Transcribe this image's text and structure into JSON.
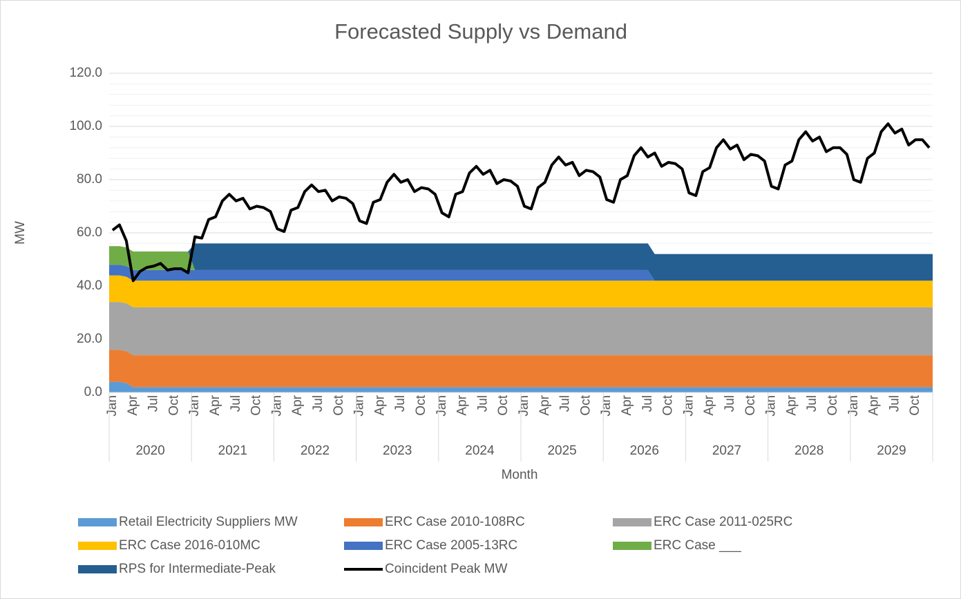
{
  "chart_data": {
    "type": "stacked_area_line",
    "title": "Forecasted Supply vs Demand",
    "y_label": "MW",
    "x_label": "Month",
    "categories": [
      "Jan",
      null,
      null,
      "Apr",
      null,
      null,
      "Jul",
      null,
      null,
      "Oct",
      null,
      null,
      "Jan",
      null,
      null,
      "Apr",
      null,
      null,
      "Jul",
      null,
      null,
      "Oct",
      null,
      null,
      "Jan",
      null,
      null,
      "Apr",
      null,
      null,
      "Jul",
      null,
      null,
      "Oct",
      null,
      null,
      "Jan",
      null,
      null,
      "Apr",
      null,
      null,
      "Jul",
      null,
      null,
      "Oct",
      null,
      null,
      "Jan",
      null,
      null,
      "Apr",
      null,
      null,
      "Jul",
      null,
      null,
      "Oct",
      null,
      null,
      "Jan",
      null,
      null,
      "Apr",
      null,
      null,
      "Jul",
      null,
      null,
      "Oct",
      null,
      null,
      "Jan",
      null,
      null,
      "Apr",
      null,
      null,
      "Jul",
      null,
      null,
      "Oct",
      null,
      null,
      "Jan",
      null,
      null,
      "Apr",
      null,
      null,
      "Jul",
      null,
      null,
      "Oct",
      null,
      null,
      "Jan",
      null,
      null,
      "Apr",
      null,
      null,
      "Jul",
      null,
      null,
      "Oct",
      null,
      null,
      "Jan",
      null,
      null,
      "Apr",
      null,
      null,
      "Jul",
      null,
      null,
      "Oct",
      null,
      null
    ],
    "x_groups": [
      "2020",
      "2021",
      "2022",
      "2023",
      "2024",
      "2025",
      "2026",
      "2027",
      "2028",
      "2029"
    ],
    "ylim": [
      0,
      120
    ],
    "yticks": [
      {
        "value": 0,
        "label": "0.0"
      },
      {
        "value": 20,
        "label": "20.0"
      },
      {
        "value": 40,
        "label": "40.0"
      },
      {
        "value": 60,
        "label": "60.0"
      },
      {
        "value": 80,
        "label": "80.0"
      },
      {
        "value": 100,
        "label": "100.0"
      },
      {
        "value": 120,
        "label": "120.0"
      }
    ],
    "grid": true,
    "minor_grid_step": 4,
    "legend": "bottom",
    "series": [
      {
        "name": "Retail Electricity Suppliers MW",
        "color": "#5b9bd5",
        "kind": "area",
        "values": [
          4,
          4,
          3.5,
          2,
          2,
          2,
          2,
          2,
          2,
          2,
          2,
          2,
          2,
          2,
          2,
          2,
          2,
          2,
          2,
          2,
          2,
          2,
          2,
          2,
          2,
          2,
          2,
          2,
          2,
          2,
          2,
          2,
          2,
          2,
          2,
          2,
          2,
          2,
          2,
          2,
          2,
          2,
          2,
          2,
          2,
          2,
          2,
          2,
          2,
          2,
          2,
          2,
          2,
          2,
          2,
          2,
          2,
          2,
          2,
          2,
          2,
          2,
          2,
          2,
          2,
          2,
          2,
          2,
          2,
          2,
          2,
          2,
          2,
          2,
          2,
          2,
          2,
          2,
          2,
          2,
          2,
          2,
          2,
          2,
          2,
          2,
          2,
          2,
          2,
          2,
          2,
          2,
          2,
          2,
          2,
          2,
          2,
          2,
          2,
          2,
          2,
          2,
          2,
          2,
          2,
          2,
          2,
          2,
          2,
          2,
          2,
          2,
          2,
          2,
          2,
          2,
          2,
          2,
          2,
          2
        ]
      },
      {
        "name": "ERC Case 2010-108RC",
        "color": "#ed7d31",
        "kind": "area",
        "values": [
          12,
          12,
          12,
          12,
          12,
          12,
          12,
          12,
          12,
          12,
          12,
          12,
          12,
          12,
          12,
          12,
          12,
          12,
          12,
          12,
          12,
          12,
          12,
          12,
          12,
          12,
          12,
          12,
          12,
          12,
          12,
          12,
          12,
          12,
          12,
          12,
          12,
          12,
          12,
          12,
          12,
          12,
          12,
          12,
          12,
          12,
          12,
          12,
          12,
          12,
          12,
          12,
          12,
          12,
          12,
          12,
          12,
          12,
          12,
          12,
          12,
          12,
          12,
          12,
          12,
          12,
          12,
          12,
          12,
          12,
          12,
          12,
          12,
          12,
          12,
          12,
          12,
          12,
          12,
          12,
          12,
          12,
          12,
          12,
          12,
          12,
          12,
          12,
          12,
          12,
          12,
          12,
          12,
          12,
          12,
          12,
          12,
          12,
          12,
          12,
          12,
          12,
          12,
          12,
          12,
          12,
          12,
          12,
          12,
          12,
          12,
          12,
          12,
          12,
          12,
          12,
          12,
          12,
          12,
          12
        ]
      },
      {
        "name": "ERC Case 2011-025RC",
        "color": "#a5a5a5",
        "kind": "area",
        "values": [
          18,
          18,
          18,
          18,
          18,
          18,
          18,
          18,
          18,
          18,
          18,
          18,
          18,
          18,
          18,
          18,
          18,
          18,
          18,
          18,
          18,
          18,
          18,
          18,
          18,
          18,
          18,
          18,
          18,
          18,
          18,
          18,
          18,
          18,
          18,
          18,
          18,
          18,
          18,
          18,
          18,
          18,
          18,
          18,
          18,
          18,
          18,
          18,
          18,
          18,
          18,
          18,
          18,
          18,
          18,
          18,
          18,
          18,
          18,
          18,
          18,
          18,
          18,
          18,
          18,
          18,
          18,
          18,
          18,
          18,
          18,
          18,
          18,
          18,
          18,
          18,
          18,
          18,
          18,
          18,
          18,
          18,
          18,
          18,
          18,
          18,
          18,
          18,
          18,
          18,
          18,
          18,
          18,
          18,
          18,
          18,
          18,
          18,
          18,
          18,
          18,
          18,
          18,
          18,
          18,
          18,
          18,
          18,
          18,
          18,
          18,
          18,
          18,
          18,
          18,
          18,
          18,
          18,
          18,
          18
        ]
      },
      {
        "name": "ERC Case 2016-010MC",
        "color": "#ffc000",
        "kind": "area",
        "values": [
          10,
          10,
          10,
          10,
          10,
          10,
          10,
          10,
          10,
          10,
          10,
          10,
          10,
          10,
          10,
          10,
          10,
          10,
          10,
          10,
          10,
          10,
          10,
          10,
          10,
          10,
          10,
          10,
          10,
          10,
          10,
          10,
          10,
          10,
          10,
          10,
          10,
          10,
          10,
          10,
          10,
          10,
          10,
          10,
          10,
          10,
          10,
          10,
          10,
          10,
          10,
          10,
          10,
          10,
          10,
          10,
          10,
          10,
          10,
          10,
          10,
          10,
          10,
          10,
          10,
          10,
          10,
          10,
          10,
          10,
          10,
          10,
          10,
          10,
          10,
          10,
          10,
          10,
          10,
          10,
          10,
          10,
          10,
          10,
          10,
          10,
          10,
          10,
          10,
          10,
          10,
          10,
          10,
          10,
          10,
          10,
          10,
          10,
          10,
          10,
          10,
          10,
          10,
          10,
          10,
          10,
          10,
          10,
          10,
          10,
          10,
          10,
          10,
          10,
          10,
          10,
          10,
          10,
          10,
          10
        ]
      },
      {
        "name": "ERC Case 2005-13RC",
        "color": "#4472c4",
        "kind": "area",
        "values": [
          4,
          4,
          4,
          4,
          4,
          4,
          4,
          4,
          4,
          4,
          4,
          4,
          4,
          4,
          4,
          4,
          4,
          4,
          4,
          4,
          4,
          4,
          4,
          4,
          4,
          4,
          4,
          4,
          4,
          4,
          4,
          4,
          4,
          4,
          4,
          4,
          4,
          4,
          4,
          4,
          4,
          4,
          4,
          4,
          4,
          4,
          4,
          4,
          4,
          4,
          4,
          4,
          4,
          4,
          4,
          4,
          4,
          4,
          4,
          4,
          4,
          4,
          4,
          4,
          4,
          4,
          4,
          4,
          4,
          4,
          4,
          4,
          4,
          4,
          4,
          4,
          4,
          4,
          4,
          0,
          0,
          0,
          0,
          0,
          0,
          0,
          0,
          0,
          0,
          0,
          0,
          0,
          0,
          0,
          0,
          0,
          0,
          0,
          0,
          0,
          0,
          0,
          0,
          0,
          0,
          0,
          0,
          0,
          0,
          0,
          0,
          0,
          0,
          0,
          0,
          0,
          0,
          0,
          0,
          0
        ]
      },
      {
        "name": "ERC Case ___",
        "color": "#70ad47",
        "kind": "area",
        "values": [
          7,
          7,
          7,
          7,
          7,
          7,
          7,
          7,
          7,
          7,
          7,
          7,
          0,
          0,
          0,
          0,
          0,
          0,
          0,
          0,
          0,
          0,
          0,
          0,
          0,
          0,
          0,
          0,
          0,
          0,
          0,
          0,
          0,
          0,
          0,
          0,
          0,
          0,
          0,
          0,
          0,
          0,
          0,
          0,
          0,
          0,
          0,
          0,
          0,
          0,
          0,
          0,
          0,
          0,
          0,
          0,
          0,
          0,
          0,
          0,
          0,
          0,
          0,
          0,
          0,
          0,
          0,
          0,
          0,
          0,
          0,
          0,
          0,
          0,
          0,
          0,
          0,
          0,
          0,
          0,
          0,
          0,
          0,
          0,
          0,
          0,
          0,
          0,
          0,
          0,
          0,
          0,
          0,
          0,
          0,
          0,
          0,
          0,
          0,
          0,
          0,
          0,
          0,
          0,
          0,
          0,
          0,
          0,
          0,
          0,
          0,
          0,
          0,
          0,
          0,
          0,
          0,
          0,
          0,
          0
        ]
      },
      {
        "name": "RPS for Intermediate-Peak",
        "color": "#255e91",
        "kind": "area",
        "values": [
          0,
          0,
          0,
          0,
          0,
          0,
          0,
          0,
          0,
          0,
          0,
          0,
          10,
          10,
          10,
          10,
          10,
          10,
          10,
          10,
          10,
          10,
          10,
          10,
          10,
          10,
          10,
          10,
          10,
          10,
          10,
          10,
          10,
          10,
          10,
          10,
          10,
          10,
          10,
          10,
          10,
          10,
          10,
          10,
          10,
          10,
          10,
          10,
          10,
          10,
          10,
          10,
          10,
          10,
          10,
          10,
          10,
          10,
          10,
          10,
          10,
          10,
          10,
          10,
          10,
          10,
          10,
          10,
          10,
          10,
          10,
          10,
          10,
          10,
          10,
          10,
          10,
          10,
          10,
          10,
          10,
          10,
          10,
          10,
          10,
          10,
          10,
          10,
          10,
          10,
          10,
          10,
          10,
          10,
          10,
          10,
          10,
          10,
          10,
          10,
          10,
          10,
          10,
          10,
          10,
          10,
          10,
          10,
          10,
          10,
          10,
          10,
          10,
          10,
          10,
          10,
          10,
          10,
          10,
          10
        ]
      },
      {
        "name": "Coincident Peak MW",
        "color": "#000000",
        "kind": "line",
        "values": [
          61,
          63,
          57,
          42,
          45.5,
          47,
          47.5,
          48.5,
          46,
          46.5,
          46.5,
          45,
          58.5,
          58,
          65,
          66,
          72,
          74.5,
          72,
          73,
          69,
          70,
          69.5,
          68,
          61.5,
          60.5,
          68.5,
          69.5,
          75.5,
          78,
          75.5,
          76,
          72,
          73.5,
          73,
          71,
          64.5,
          63.5,
          71.5,
          72.5,
          79,
          82,
          79,
          80,
          75.5,
          77,
          76.5,
          74.5,
          67.5,
          66,
          74.5,
          75.5,
          82.5,
          85,
          82,
          83.5,
          78.5,
          80,
          79.5,
          77.5,
          70,
          69,
          77,
          79,
          85.5,
          88.5,
          85.5,
          86.5,
          81.5,
          83.5,
          83,
          81,
          72.5,
          71.5,
          80,
          81.5,
          89,
          92,
          88.5,
          90,
          85,
          86.5,
          86,
          84,
          75,
          74,
          83,
          84.5,
          92,
          95,
          91.5,
          93,
          87.5,
          89.5,
          89,
          87,
          77.5,
          76.5,
          85.5,
          87,
          95,
          98,
          94.5,
          96,
          90.5,
          92,
          92,
          89.5,
          80,
          79,
          88,
          90,
          98,
          101,
          97.5,
          99,
          93,
          95,
          95,
          92
        ]
      }
    ]
  }
}
